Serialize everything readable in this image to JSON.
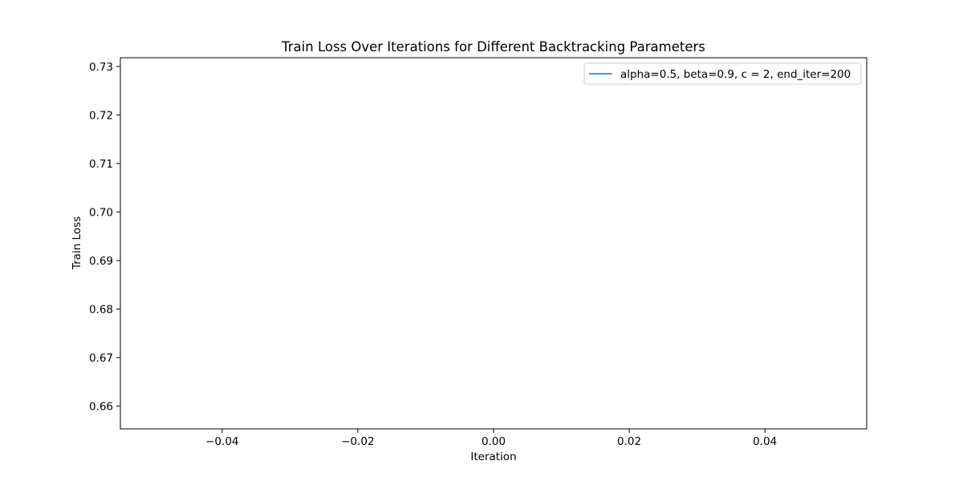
{
  "chart_data": {
    "type": "line",
    "title": "Train Loss Over Iterations for Different Backtracking Parameters",
    "xlabel": "Iteration",
    "ylabel": "Train Loss",
    "xlim": [
      -0.055,
      0.055
    ],
    "ylim": [
      0.6553,
      0.7318
    ],
    "xticks": [
      -0.04,
      -0.02,
      0.0,
      0.02,
      0.04
    ],
    "xtick_labels": [
      "−0.04",
      "−0.02",
      "0.00",
      "0.02",
      "0.04"
    ],
    "yticks": [
      0.66,
      0.67,
      0.68,
      0.69,
      0.7,
      0.71,
      0.72,
      0.73
    ],
    "ytick_labels": [
      "0.66",
      "0.67",
      "0.68",
      "0.69",
      "0.70",
      "0.71",
      "0.72",
      "0.73"
    ],
    "grid": false,
    "legend_position": "top-right",
    "series": [
      {
        "name": "alpha=0.5, beta=0.9, c = 2, end_iter=200",
        "color": "#1f77b4",
        "x": [],
        "y": []
      }
    ]
  }
}
